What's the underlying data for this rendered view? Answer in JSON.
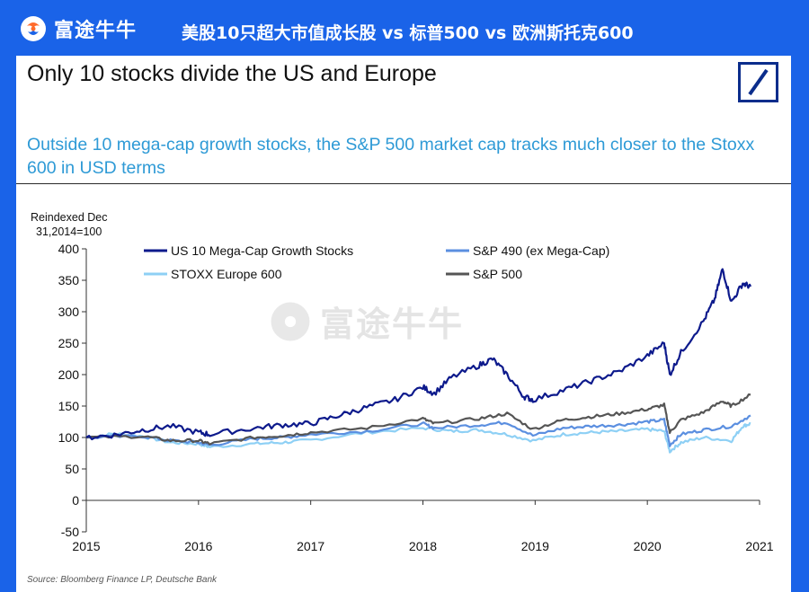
{
  "header": {
    "brand_name": "富途牛牛",
    "title": "美股10只超大市值成长股 vs 标普500 vs 欧洲斯托克600"
  },
  "slide": {
    "title": "Only 10 stocks divide the US and Europe",
    "subtitle": "Outside 10 mega-cap growth stocks, the S&P 500 market cap tracks much closer to the Stoxx 600 in USD terms",
    "source": "Source: Bloomberg Finance LP, Deutsche Bank",
    "watermark": "富途牛牛"
  },
  "chart_data": {
    "type": "line",
    "title": "",
    "ylabel": "Reindexed Dec 31,2014=100",
    "xlabel": "",
    "xlim": [
      2015,
      2021
    ],
    "ylim": [
      -50,
      400
    ],
    "x_ticks": [
      "2015",
      "2016",
      "2017",
      "2018",
      "2019",
      "2020",
      "2021"
    ],
    "y_ticks": [
      "-50",
      "0",
      "50",
      "100",
      "150",
      "200",
      "250",
      "300",
      "350",
      "400"
    ],
    "legend_position": "top",
    "grid": false,
    "series": [
      {
        "name": "US 10 Mega-Cap Growth Stocks",
        "color": "#0d1a8c",
        "points": [
          [
            2015.0,
            100
          ],
          [
            2015.25,
            104
          ],
          [
            2015.5,
            112
          ],
          [
            2015.75,
            118
          ],
          [
            2016.0,
            108
          ],
          [
            2016.1,
            105
          ],
          [
            2016.5,
            115
          ],
          [
            2016.75,
            120
          ],
          [
            2017.0,
            122
          ],
          [
            2017.25,
            135
          ],
          [
            2017.5,
            148
          ],
          [
            2017.75,
            160
          ],
          [
            2018.0,
            180
          ],
          [
            2018.1,
            170
          ],
          [
            2018.25,
            195
          ],
          [
            2018.5,
            215
          ],
          [
            2018.62,
            225
          ],
          [
            2018.75,
            200
          ],
          [
            2018.9,
            165
          ],
          [
            2018.98,
            160
          ],
          [
            2019.25,
            175
          ],
          [
            2019.5,
            190
          ],
          [
            2019.75,
            205
          ],
          [
            2020.0,
            230
          ],
          [
            2020.15,
            250
          ],
          [
            2020.2,
            200
          ],
          [
            2020.3,
            235
          ],
          [
            2020.5,
            285
          ],
          [
            2020.6,
            320
          ],
          [
            2020.67,
            368
          ],
          [
            2020.75,
            315
          ],
          [
            2020.85,
            345
          ],
          [
            2020.92,
            340
          ]
        ]
      },
      {
        "name": "S&P 490 (ex Mega-Cap)",
        "color": "#5b8fe0",
        "points": [
          [
            2015.0,
            100
          ],
          [
            2015.5,
            102
          ],
          [
            2015.75,
            95
          ],
          [
            2016.0,
            92
          ],
          [
            2016.1,
            88
          ],
          [
            2016.5,
            98
          ],
          [
            2016.75,
            100
          ],
          [
            2017.0,
            105
          ],
          [
            2017.5,
            110
          ],
          [
            2018.0,
            122
          ],
          [
            2018.1,
            115
          ],
          [
            2018.5,
            120
          ],
          [
            2018.75,
            124
          ],
          [
            2018.98,
            103
          ],
          [
            2019.25,
            115
          ],
          [
            2019.5,
            118
          ],
          [
            2019.75,
            120
          ],
          [
            2020.0,
            125
          ],
          [
            2020.15,
            128
          ],
          [
            2020.2,
            88
          ],
          [
            2020.3,
            105
          ],
          [
            2020.5,
            112
          ],
          [
            2020.75,
            118
          ],
          [
            2020.92,
            135
          ]
        ]
      },
      {
        "name": "STOXX Europe 600",
        "color": "#8ed0f5",
        "points": [
          [
            2015.0,
            100
          ],
          [
            2015.25,
            106
          ],
          [
            2015.5,
            102
          ],
          [
            2015.75,
            92
          ],
          [
            2016.0,
            90
          ],
          [
            2016.1,
            85
          ],
          [
            2016.5,
            90
          ],
          [
            2016.75,
            92
          ],
          [
            2017.0,
            96
          ],
          [
            2017.5,
            108
          ],
          [
            2018.0,
            115
          ],
          [
            2018.25,
            110
          ],
          [
            2018.5,
            112
          ],
          [
            2018.75,
            105
          ],
          [
            2018.98,
            95
          ],
          [
            2019.25,
            105
          ],
          [
            2019.5,
            108
          ],
          [
            2019.75,
            110
          ],
          [
            2020.0,
            113
          ],
          [
            2020.15,
            110
          ],
          [
            2020.2,
            78
          ],
          [
            2020.3,
            92
          ],
          [
            2020.5,
            100
          ],
          [
            2020.75,
            95
          ],
          [
            2020.85,
            118
          ],
          [
            2020.92,
            122
          ]
        ]
      },
      {
        "name": "S&P 500",
        "color": "#555555",
        "points": [
          [
            2015.0,
            100
          ],
          [
            2015.5,
            102
          ],
          [
            2015.75,
            95
          ],
          [
            2016.0,
            95
          ],
          [
            2016.1,
            90
          ],
          [
            2016.5,
            100
          ],
          [
            2016.75,
            103
          ],
          [
            2017.0,
            108
          ],
          [
            2017.5,
            115
          ],
          [
            2018.0,
            130
          ],
          [
            2018.1,
            122
          ],
          [
            2018.5,
            130
          ],
          [
            2018.75,
            138
          ],
          [
            2018.98,
            113
          ],
          [
            2019.25,
            128
          ],
          [
            2019.5,
            133
          ],
          [
            2019.75,
            138
          ],
          [
            2020.0,
            145
          ],
          [
            2020.15,
            152
          ],
          [
            2020.2,
            108
          ],
          [
            2020.3,
            128
          ],
          [
            2020.5,
            140
          ],
          [
            2020.67,
            158
          ],
          [
            2020.75,
            150
          ],
          [
            2020.92,
            168
          ]
        ]
      }
    ]
  }
}
